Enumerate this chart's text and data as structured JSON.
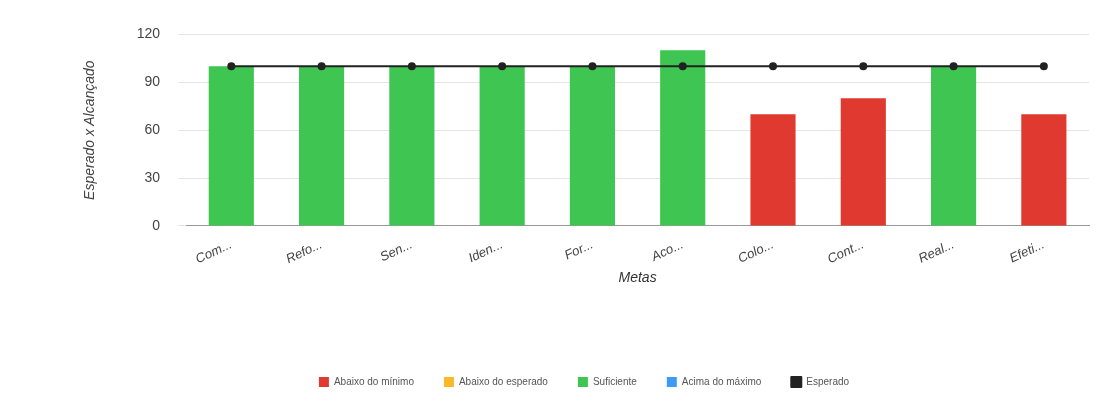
{
  "chart_data": {
    "type": "bar",
    "xlabel": "Metas",
    "ylabel": "Esperado x Alcançado",
    "categories": [
      "Com...",
      "Refo...",
      "Sen...",
      "Iden...",
      "For...",
      "Aco...",
      "Colo...",
      "Cont...",
      "Real...",
      "Efeti..."
    ],
    "series": [
      {
        "name": "Abaixo do mínimo",
        "color": "#e0392f",
        "values": [
          null,
          null,
          null,
          null,
          null,
          null,
          70,
          80,
          null,
          70
        ]
      },
      {
        "name": "Abaixo do esperado",
        "color": "#fbb829",
        "values": [
          null,
          null,
          null,
          null,
          null,
          null,
          null,
          null,
          null,
          null
        ]
      },
      {
        "name": "Suficiente",
        "color": "#3ec552",
        "values": [
          100,
          100,
          100,
          100,
          100,
          110,
          null,
          null,
          100,
          null
        ]
      },
      {
        "name": "Acima do máximo",
        "color": "#3d9bf5",
        "values": [
          null,
          null,
          null,
          null,
          null,
          null,
          null,
          null,
          null,
          null
        ]
      },
      {
        "name": "Esperado",
        "type": "line",
        "color": "#222222",
        "values": [
          100,
          100,
          100,
          100,
          100,
          100,
          100,
          100,
          100,
          100
        ]
      }
    ],
    "ylim": [
      0,
      120
    ],
    "yticks": [
      0,
      30,
      60,
      90,
      120
    ],
    "grid": "y",
    "legend": "bottom",
    "marker": "circle",
    "line_style": "solid"
  }
}
